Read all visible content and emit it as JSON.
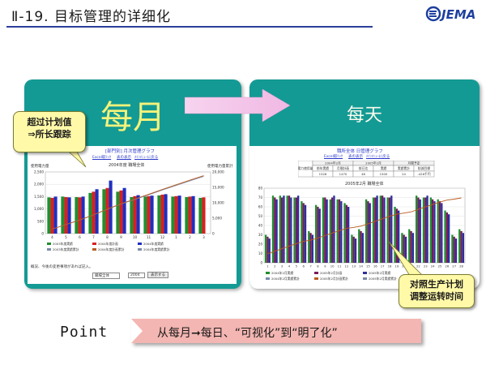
{
  "slide": {
    "title": "Ⅱ-19. 目标管理的详细化",
    "logo_text": "JEMA"
  },
  "monthly_panel": {
    "header": "每月",
    "page_title": "[部門別] 月次管理グラフ",
    "links": [
      "Excel取ﾘｯｸ",
      "表の表示",
      "ﾒｲﾝﾒﾆｭｰに戻る"
    ],
    "chart_title": "2004年度  職場全体",
    "y_left_label": "使用電力量",
    "y_right_label": "使用電力量累計",
    "x_ticks": [
      "4",
      "5",
      "6",
      "7",
      "8",
      "9",
      "10",
      "11",
      "12",
      "1",
      "2",
      "3"
    ],
    "y_left_ticks": [
      "0",
      "500",
      "1,000",
      "1,500",
      "2,000",
      "2,500"
    ],
    "y_right_ticks": [
      "0",
      "5,000",
      "10,000",
      "15,000",
      "20,000"
    ],
    "legend": [
      "2003年度実績",
      "2004年度計画",
      "2004年度実績",
      "2003年度実績累計",
      "2004年度計画累計",
      "2004年度実績累計"
    ],
    "note": "概況、今後の変更事項があれば記入。",
    "form_select": "職場全体",
    "form_year": "2004",
    "form_button": "表示する",
    "colors": {
      "series_a": "#1f8f2f",
      "series_b": "#d92020",
      "series_c": "#1f2fbf",
      "plan_line": "#b85a20",
      "prev_line": "#7a8aa8"
    }
  },
  "daily_panel": {
    "header": "每天",
    "page_title": "職所全体 日管理グラフ",
    "links": [
      "Excel取ﾘｯｸ",
      "表の表示",
      "ﾒｲﾝﾒﾆｭｰに戻る"
    ],
    "table_head": [
      "2004年2月",
      "2005年2月",
      "月間予定"
    ],
    "table_row_label": "電力使用量",
    "table_cells": [
      "前年実績",
      "月間計画",
      "前日迄",
      "実績",
      "実績累計",
      "削減目標"
    ],
    "table_values": [
      "1526",
      "1470",
      "46",
      "1500",
      "24",
      "-426千円"
    ],
    "chart_title": "2005年2月  職場全体",
    "x_ticks": [
      "1",
      "2",
      "3",
      "4",
      "5",
      "6",
      "7",
      "8",
      "9",
      "10",
      "11",
      "12",
      "13",
      "14",
      "15",
      "16",
      "17",
      "18",
      "19",
      "20",
      "21",
      "22",
      "23",
      "24",
      "25",
      "26",
      "27",
      "28"
    ],
    "y_left_ticks": [
      "0",
      "10",
      "20",
      "30",
      "40",
      "50",
      "60",
      "70",
      "80"
    ],
    "legend": [
      "2004年2月実績",
      "2005年2月計画",
      "2005年2月実績",
      "2004年2月実績累計",
      "2005年2月計画累計",
      "2005年2月実績累計"
    ]
  },
  "callouts": {
    "left_line1": "超过计划值",
    "left_line2": "⇒所长跟踪",
    "right_line1": "对照生产计划",
    "right_line2": "调整运转时间"
  },
  "point": {
    "label": "Point",
    "text": "从每月➞每日、“可视化”到“明了化”"
  },
  "chart_data": [
    {
      "type": "bar",
      "title": "2004年度  職場全体",
      "categories": [
        "4",
        "5",
        "6",
        "7",
        "8",
        "9",
        "10",
        "11",
        "12",
        "1",
        "2",
        "3"
      ],
      "ylim": [
        0,
        2500
      ],
      "series": [
        {
          "name": "2003年度実績",
          "values": [
            1470,
            1500,
            1480,
            1650,
            1800,
            1700,
            1480,
            1500,
            1550,
            1500,
            1480,
            1450
          ]
        },
        {
          "name": "2004年度計画",
          "values": [
            1450,
            1480,
            1470,
            1700,
            1850,
            1750,
            1520,
            1520,
            1580,
            1520,
            1500,
            1470
          ]
        },
        {
          "name": "2004年度実績",
          "values": [
            1500,
            1470,
            1500,
            1800,
            2150,
            1850,
            1560,
            1540,
            1600,
            1540,
            1520,
            0
          ]
        }
      ],
      "cumulative_lines": [
        "2004年度計画累計",
        "2003年度実績累計"
      ]
    },
    {
      "type": "bar",
      "title": "2005年2月  職場全体",
      "categories": [
        "1",
        "2",
        "3",
        "4",
        "5",
        "6",
        "7",
        "8",
        "9",
        "10",
        "11",
        "12",
        "13",
        "14",
        "15",
        "16",
        "17",
        "18",
        "19",
        "20",
        "21",
        "22",
        "23",
        "24",
        "25",
        "26",
        "27",
        "28"
      ],
      "ylim": [
        0,
        80
      ],
      "series": [
        {
          "name": "2004年2月実績",
          "values": [
            30,
            72,
            72,
            72,
            70,
            66,
            34,
            62,
            70,
            68,
            68,
            64,
            30,
            36,
            68,
            70,
            72,
            70,
            60,
            32,
            36,
            72,
            70,
            70,
            68,
            56,
            30,
            36
          ]
        },
        {
          "name": "2005年2月計画",
          "values": [
            28,
            70,
            70,
            72,
            70,
            64,
            32,
            60,
            70,
            70,
            68,
            62,
            28,
            34,
            66,
            70,
            72,
            70,
            58,
            30,
            34,
            70,
            70,
            68,
            66,
            54,
            28,
            34
          ]
        },
        {
          "name": "2005年2月実績",
          "values": [
            26,
            68,
            72,
            70,
            72,
            62,
            30,
            58,
            68,
            72,
            66,
            60,
            26,
            32,
            64,
            72,
            70,
            72,
            56,
            28,
            32,
            68,
            72,
            66,
            64,
            52,
            26,
            32
          ]
        }
      ]
    }
  ]
}
